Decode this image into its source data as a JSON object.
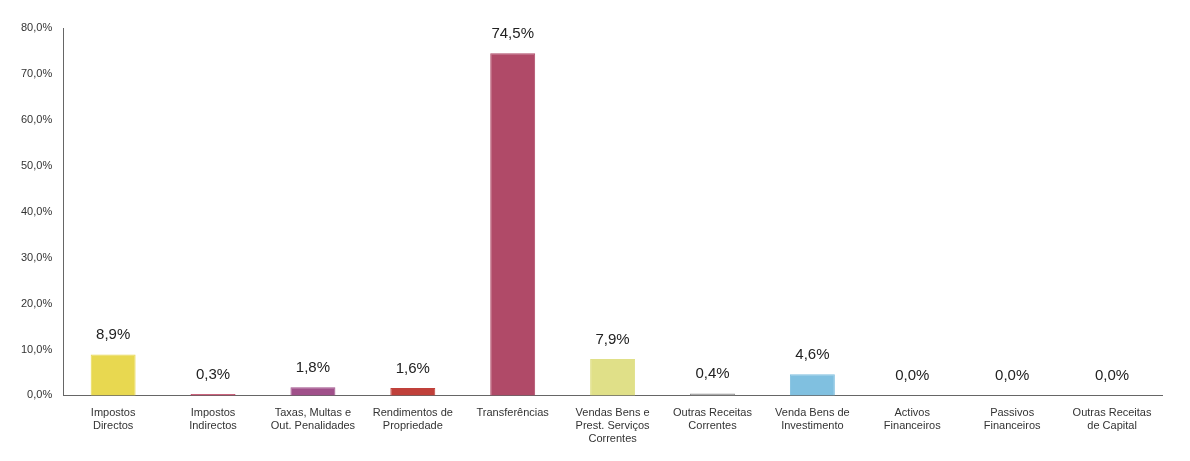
{
  "chart_data": {
    "type": "bar",
    "categories": [
      "Impostos Directos",
      "Impostos Indirectos",
      "Taxas, Multas e Out. Penalidades",
      "Rendimentos de Propriedade",
      "Transferências",
      "Vendas Bens e Prest. Serviços Correntes",
      "Outras Receitas Correntes",
      "Venda Bens de Investimento",
      "Activos Financeiros",
      "Passivos Financeiros",
      "Outras Receitas de Capital"
    ],
    "values": [
      8.9,
      0.3,
      1.8,
      1.6,
      74.5,
      7.9,
      0.4,
      4.6,
      0,
      0,
      0
    ],
    "value_labels": [
      "8,9%",
      "0,3%",
      "1,8%",
      "1,6%",
      "74,5%",
      "7,9%",
      "0,4%",
      "4,6%",
      "0,0%",
      "0,0%",
      "0,0%"
    ],
    "colors": [
      "#e8d850",
      "#c04060",
      "#a0508a",
      "#c0403a",
      "#b04a68",
      "#e0e088",
      "#909090",
      "#80c0e0",
      "#909090",
      "#909090",
      "#909090"
    ],
    "ylim": [
      0,
      80
    ],
    "yticks": [
      {
        "value": 0,
        "label": "0,0%"
      },
      {
        "value": 10,
        "label": "10,0%"
      },
      {
        "value": 20,
        "label": "20,0%"
      },
      {
        "value": 30,
        "label": "30,0%"
      },
      {
        "value": 40,
        "label": "40,0%"
      },
      {
        "value": 50,
        "label": "50,0%"
      },
      {
        "value": 60,
        "label": "60,0%"
      },
      {
        "value": 70,
        "label": "70,0%"
      },
      {
        "value": 80,
        "label": "80,0%"
      }
    ],
    "grid": false,
    "legend": false
  }
}
